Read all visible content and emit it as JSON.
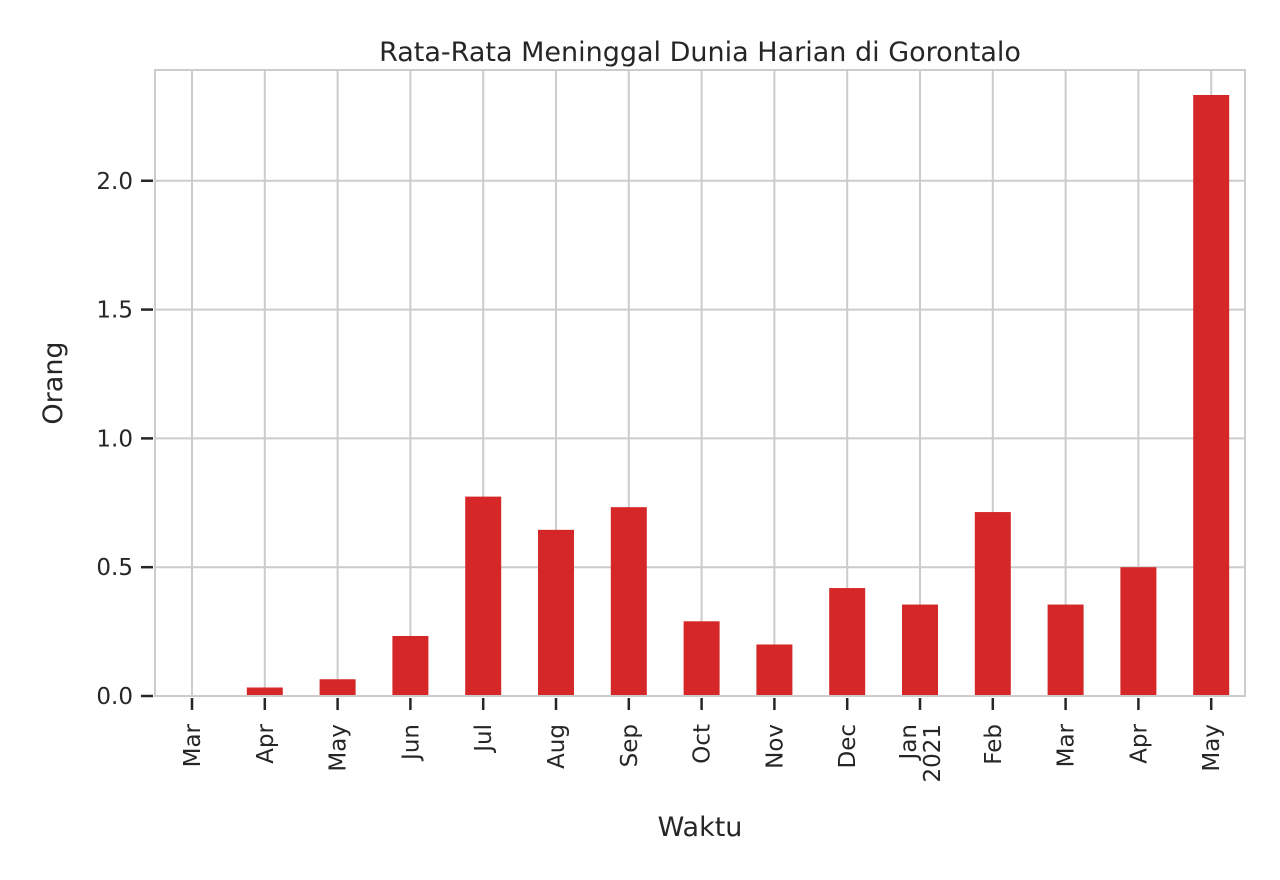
{
  "chart_data": {
    "type": "bar",
    "title": "Rata-Rata Meninggal Dunia Harian di Gorontalo",
    "xlabel": "Waktu",
    "ylabel": "Orang",
    "categories": [
      [
        "Mar"
      ],
      [
        "Apr"
      ],
      [
        "May"
      ],
      [
        "Jun"
      ],
      [
        "Jul"
      ],
      [
        "Aug"
      ],
      [
        "Sep"
      ],
      [
        "Oct"
      ],
      [
        "Nov"
      ],
      [
        "Dec"
      ],
      [
        "Jan",
        "2021"
      ],
      [
        "Feb"
      ],
      [
        "Mar"
      ],
      [
        "Apr"
      ],
      [
        "May"
      ]
    ],
    "values": [
      0.0,
      0.033,
      0.065,
      0.233,
      0.774,
      0.645,
      0.733,
      0.29,
      0.2,
      0.419,
      0.355,
      0.714,
      0.355,
      0.5,
      2.333
    ],
    "ylim": [
      0,
      2.43
    ],
    "yticks": [
      0.0,
      0.5,
      1.0,
      1.5,
      2.0
    ],
    "ytick_labels": [
      "0.0",
      "0.5",
      "1.0",
      "1.5",
      "2.0"
    ],
    "bar_color": "#d62728",
    "grid": true
  }
}
